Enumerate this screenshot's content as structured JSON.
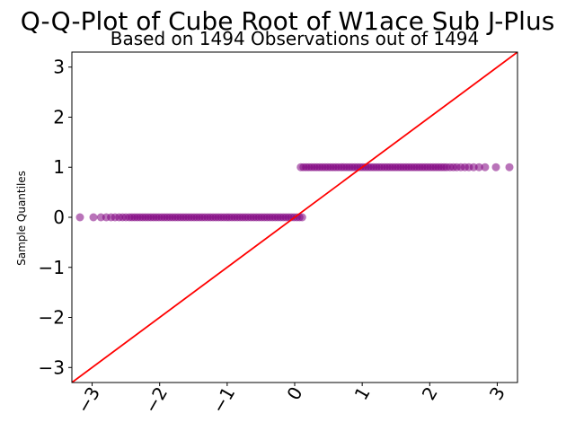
{
  "chart_data": {
    "type": "scatter",
    "title": "Q-Q-Plot of Cube Root of W1ace Sub J-Plus",
    "subtitle": "Based on 1494 Observations out of 1494",
    "xlabel": "",
    "ylabel": "Sample Quantiles",
    "xlim": [
      -3.3,
      3.3
    ],
    "ylim": [
      -3.3,
      3.3
    ],
    "xticks": [
      -3,
      -2,
      -1,
      0,
      1,
      2,
      3
    ],
    "yticks": [
      -3,
      -2,
      -1,
      0,
      1,
      2,
      3
    ],
    "xtick_labels": [
      "−3",
      "−2",
      "−1",
      "0",
      "1",
      "2",
      "3"
    ],
    "ytick_labels": [
      "−3",
      "−2",
      "−1",
      "0",
      "1",
      "2",
      "3"
    ],
    "grid": false,
    "series": [
      {
        "points_low": [
          [
            -3.18,
            0
          ],
          [
            -2.98,
            0
          ],
          [
            -2.87,
            0
          ],
          [
            -2.79,
            0
          ],
          [
            -2.72,
            0
          ],
          [
            -2.66,
            0
          ],
          [
            -2.6,
            0
          ],
          [
            -2.55,
            0
          ],
          [
            -2.5,
            0
          ],
          [
            -2.45,
            0
          ],
          [
            -2.41,
            0
          ],
          [
            -2.37,
            0
          ],
          [
            -2.33,
            0
          ],
          [
            -2.29,
            0
          ],
          [
            -2.25,
            0
          ],
          [
            -2.21,
            0
          ],
          [
            -2.17,
            0
          ],
          [
            -2.13,
            0
          ],
          [
            -2.09,
            0
          ],
          [
            -2.05,
            0
          ],
          [
            -2.01,
            0
          ],
          [
            -1.97,
            0
          ],
          [
            -1.93,
            0
          ],
          [
            -1.89,
            0
          ],
          [
            -1.85,
            0
          ],
          [
            -1.81,
            0
          ],
          [
            -1.77,
            0
          ],
          [
            -1.73,
            0
          ],
          [
            -1.69,
            0
          ],
          [
            -1.65,
            0
          ],
          [
            -1.61,
            0
          ],
          [
            -1.57,
            0
          ],
          [
            -1.53,
            0
          ],
          [
            -1.49,
            0
          ],
          [
            -1.45,
            0
          ],
          [
            -1.41,
            0
          ],
          [
            -1.37,
            0
          ],
          [
            -1.33,
            0
          ],
          [
            -1.29,
            0
          ],
          [
            -1.25,
            0
          ],
          [
            -1.21,
            0
          ],
          [
            -1.17,
            0
          ],
          [
            -1.13,
            0
          ],
          [
            -1.09,
            0
          ],
          [
            -1.05,
            0
          ],
          [
            -1.01,
            0
          ],
          [
            -0.97,
            0
          ],
          [
            -0.93,
            0
          ],
          [
            -0.89,
            0
          ],
          [
            -0.85,
            0
          ],
          [
            -0.81,
            0
          ],
          [
            -0.77,
            0
          ],
          [
            -0.73,
            0
          ],
          [
            -0.69,
            0
          ],
          [
            -0.65,
            0
          ],
          [
            -0.61,
            0
          ],
          [
            -0.57,
            0
          ],
          [
            -0.53,
            0
          ],
          [
            -0.49,
            0
          ],
          [
            -0.45,
            0
          ],
          [
            -0.41,
            0
          ],
          [
            -0.37,
            0
          ],
          [
            -0.33,
            0
          ],
          [
            -0.29,
            0
          ],
          [
            -0.25,
            0
          ],
          [
            -0.21,
            0
          ],
          [
            -0.17,
            0
          ],
          [
            -0.13,
            0
          ],
          [
            -0.09,
            0
          ],
          [
            -0.05,
            0
          ],
          [
            -0.01,
            0
          ],
          [
            0.03,
            0
          ],
          [
            0.07,
            0
          ],
          [
            0.11,
            0
          ]
        ],
        "points_high": [
          [
            0.09,
            1
          ],
          [
            0.13,
            1
          ],
          [
            0.17,
            1
          ],
          [
            0.21,
            1
          ],
          [
            0.25,
            1
          ],
          [
            0.29,
            1
          ],
          [
            0.33,
            1
          ],
          [
            0.37,
            1
          ],
          [
            0.41,
            1
          ],
          [
            0.45,
            1
          ],
          [
            0.49,
            1
          ],
          [
            0.53,
            1
          ],
          [
            0.57,
            1
          ],
          [
            0.61,
            1
          ],
          [
            0.65,
            1
          ],
          [
            0.69,
            1
          ],
          [
            0.73,
            1
          ],
          [
            0.77,
            1
          ],
          [
            0.81,
            1
          ],
          [
            0.85,
            1
          ],
          [
            0.89,
            1
          ],
          [
            0.93,
            1
          ],
          [
            0.97,
            1
          ],
          [
            1.01,
            1
          ],
          [
            1.05,
            1
          ],
          [
            1.09,
            1
          ],
          [
            1.13,
            1
          ],
          [
            1.17,
            1
          ],
          [
            1.21,
            1
          ],
          [
            1.25,
            1
          ],
          [
            1.29,
            1
          ],
          [
            1.33,
            1
          ],
          [
            1.37,
            1
          ],
          [
            1.41,
            1
          ],
          [
            1.45,
            1
          ],
          [
            1.49,
            1
          ],
          [
            1.53,
            1
          ],
          [
            1.57,
            1
          ],
          [
            1.61,
            1
          ],
          [
            1.65,
            1
          ],
          [
            1.69,
            1
          ],
          [
            1.73,
            1
          ],
          [
            1.77,
            1
          ],
          [
            1.81,
            1
          ],
          [
            1.85,
            1
          ],
          [
            1.89,
            1
          ],
          [
            1.93,
            1
          ],
          [
            1.97,
            1
          ],
          [
            2.01,
            1
          ],
          [
            2.05,
            1
          ],
          [
            2.09,
            1
          ],
          [
            2.13,
            1
          ],
          [
            2.17,
            1
          ],
          [
            2.21,
            1
          ],
          [
            2.25,
            1
          ],
          [
            2.3,
            1
          ],
          [
            2.35,
            1
          ],
          [
            2.4,
            1
          ],
          [
            2.46,
            1
          ],
          [
            2.52,
            1
          ],
          [
            2.58,
            1
          ],
          [
            2.65,
            1
          ],
          [
            2.73,
            1
          ],
          [
            2.82,
            1
          ],
          [
            2.98,
            1
          ],
          [
            3.18,
            1
          ]
        ]
      }
    ],
    "reference_line": {
      "slope": 1,
      "intercept": 0
    },
    "colors": {
      "points": "#800080",
      "line": "#ff0000"
    }
  }
}
